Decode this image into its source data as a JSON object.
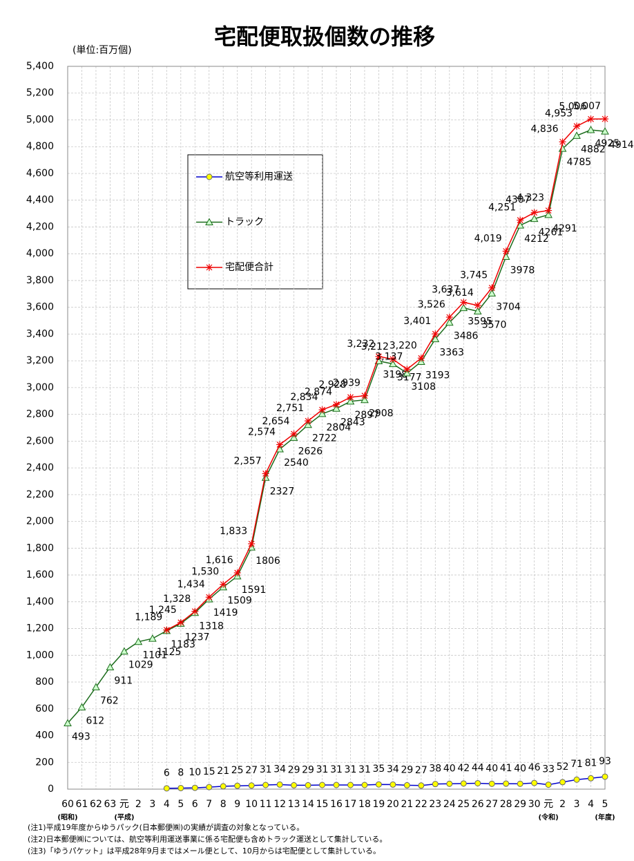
{
  "chart_data": {
    "type": "line",
    "title": "宅配便取扱個数の推移",
    "unit_label": "(単位:百万個)",
    "categories": [
      "60",
      "61",
      "62",
      "63",
      "元",
      "2",
      "3",
      "4",
      "5",
      "6",
      "7",
      "8",
      "9",
      "10",
      "11",
      "12",
      "13",
      "14",
      "15",
      "16",
      "17",
      "18",
      "19",
      "20",
      "21",
      "22",
      "23",
      "24",
      "25",
      "26",
      "27",
      "28",
      "29",
      "30",
      "元",
      "2",
      "3",
      "4",
      "5"
    ],
    "era_labels": [
      "(昭和)",
      null,
      null,
      null,
      "(平成)",
      null,
      null,
      null,
      null,
      null,
      null,
      null,
      null,
      null,
      null,
      null,
      null,
      null,
      null,
      null,
      null,
      null,
      null,
      null,
      null,
      null,
      null,
      null,
      null,
      null,
      null,
      null,
      null,
      null,
      "(令和)",
      null,
      null,
      null,
      "(年度)"
    ],
    "series": [
      {
        "name": "航空等利用運送",
        "color": "#0000cc",
        "marker": "circle",
        "marker_color": "#ffff00",
        "values": [
          null,
          null,
          null,
          null,
          null,
          null,
          null,
          6,
          8,
          10,
          15,
          21,
          25,
          27,
          31,
          34,
          29,
          29,
          31,
          31,
          31,
          31,
          35,
          34,
          29,
          27,
          38,
          40,
          42,
          44,
          40,
          41,
          40,
          46,
          33,
          52,
          71,
          81,
          93
        ]
      },
      {
        "name": "トラック",
        "color": "#1a6b1a",
        "marker": "triangle",
        "marker_color": "#ccffcc",
        "values": [
          493,
          612,
          762,
          911,
          1029,
          1101,
          1125,
          1183,
          1237,
          1318,
          1419,
          1509,
          1591,
          1806,
          2327,
          2540,
          2626,
          2722,
          2804,
          2843,
          2897,
          2908,
          3198,
          3177,
          3108,
          3193,
          3363,
          3486,
          3595,
          3570,
          3704,
          3978,
          4212,
          4261,
          4291,
          4785,
          4882,
          4925,
          4914
        ]
      },
      {
        "name": "宅配便合計",
        "color": "#ee0000",
        "marker": "star",
        "marker_color": "#ee0000",
        "values": [
          null,
          null,
          null,
          null,
          null,
          null,
          null,
          1189,
          1245,
          1328,
          1434,
          1530,
          1616,
          1833,
          2357,
          2574,
          2654,
          2751,
          2834,
          2874,
          2928,
          2939,
          3232,
          3212,
          3137,
          3220,
          3401,
          3526,
          3637,
          3614,
          3745,
          4019,
          4251,
          4307,
          4323,
          4836,
          4953,
          5006,
          5007
        ],
        "value_labels": [
          null,
          null,
          null,
          null,
          null,
          null,
          null,
          "1,189",
          "1,245",
          "1,328",
          "1,434",
          "1,530",
          "1,616",
          "1,833",
          "2,357",
          "2,574",
          "2,654",
          "2,751",
          "2,834",
          "2,874",
          "2,928",
          "2,939",
          "3,232",
          "3,212",
          "3,137",
          "3,220",
          "3,401",
          "3,526",
          "3,637",
          "3,614",
          "3,745",
          "4,019",
          "4,251",
          "4307",
          "4,323",
          "4,836",
          "4,953",
          "5,006",
          "5,007"
        ]
      }
    ],
    "ylim": [
      0,
      5400
    ],
    "yticks": [
      0,
      200,
      400,
      600,
      800,
      {
        "value": 1000,
        "label": "1,000"
      },
      {
        "value": 1200,
        "label": "1,200"
      },
      {
        "value": 1400,
        "label": "1,400"
      },
      {
        "value": 1600,
        "label": "1,600"
      },
      {
        "value": 1800,
        "label": "1,800"
      },
      {
        "value": 2000,
        "label": "2,000"
      },
      {
        "value": 2200,
        "label": "2,200"
      },
      {
        "value": 2400,
        "label": "2,400"
      },
      {
        "value": 2600,
        "label": "2,600"
      },
      {
        "value": 2800,
        "label": "2,800"
      },
      {
        "value": 3000,
        "label": "3,000"
      },
      {
        "value": 3200,
        "label": "3,200"
      },
      {
        "value": 3400,
        "label": "3,400"
      },
      {
        "value": 3600,
        "label": "3,600"
      },
      {
        "value": 3800,
        "label": "3,800"
      },
      {
        "value": 4000,
        "label": "4,000"
      },
      {
        "value": 4200,
        "label": "4,200"
      },
      {
        "value": 4400,
        "label": "4,400"
      },
      {
        "value": 4600,
        "label": "4,600"
      },
      {
        "value": 4800,
        "label": "4,800"
      },
      {
        "value": 5000,
        "label": "5,000"
      },
      {
        "value": 5200,
        "label": "5,200"
      },
      {
        "value": 5400,
        "label": "5,400"
      }
    ],
    "grid": true,
    "notes": [
      "(注1)平成19年度からゆうパック(日本郵便㈱)の実績が調査の対象となっている。",
      "(注2)日本郵便㈱については、航空等利用運送事業に係る宅配便も含めトラック運送として集計している。",
      "(注3)「ゆうパケット」は平成28年9月まではメール便として、10月からは宅配便として集計している。"
    ]
  }
}
